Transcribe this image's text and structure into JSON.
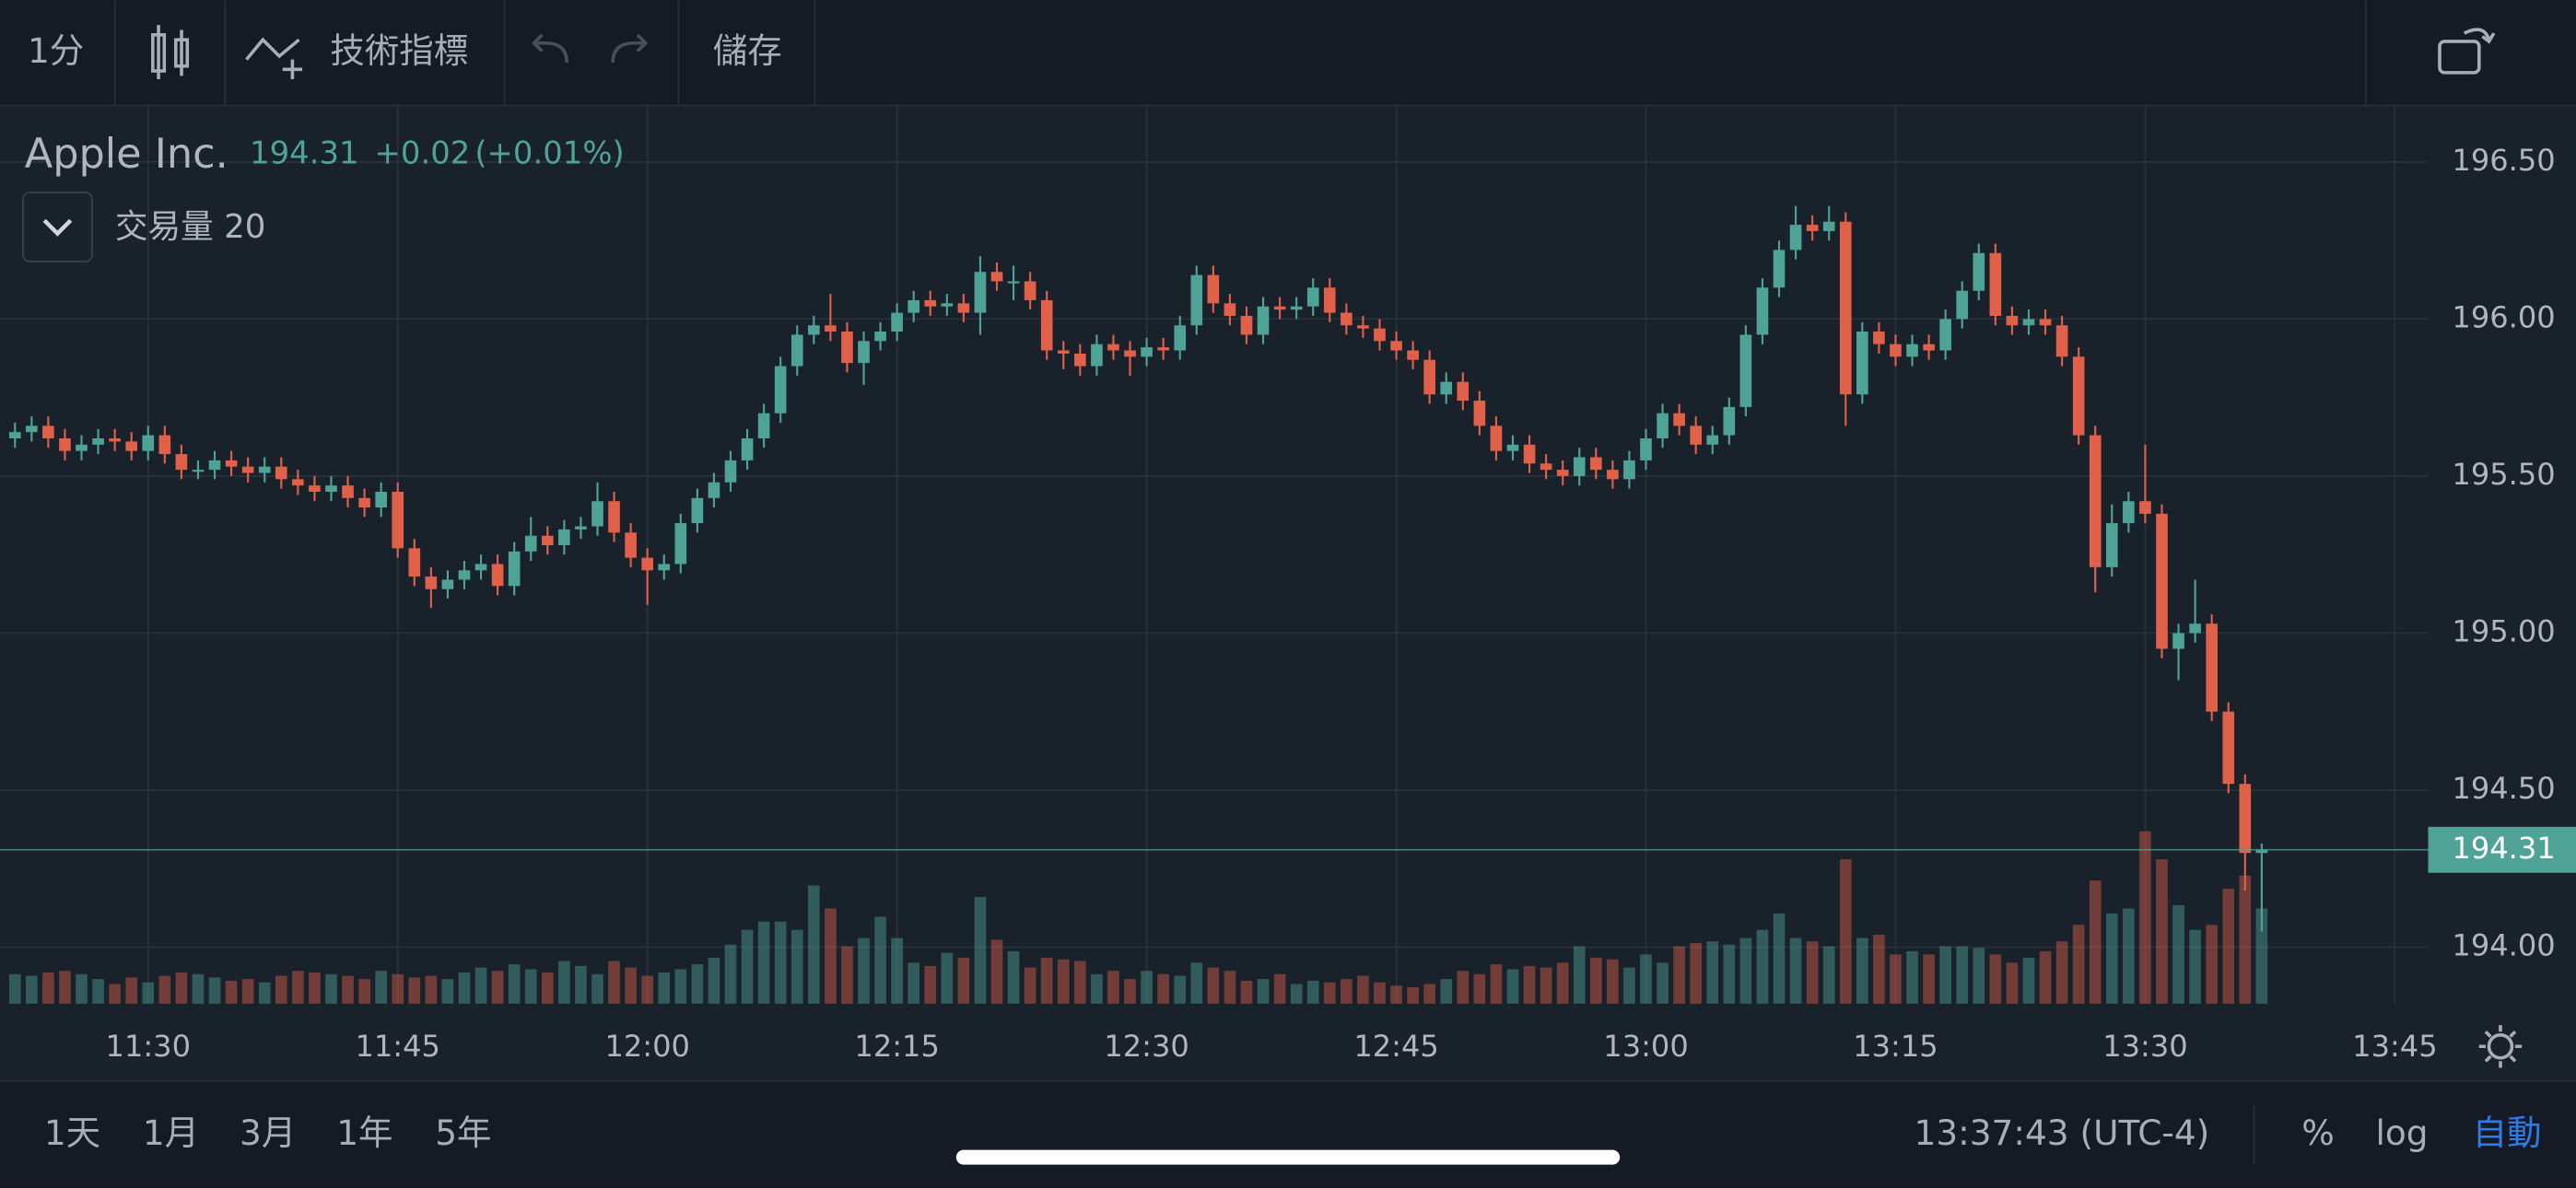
{
  "toolbar": {
    "interval": "1分",
    "indicators": "技術指標",
    "save": "儲存"
  },
  "chart_data": {
    "type": "candlestick",
    "title": "Apple Inc.",
    "last_price": 194.31,
    "change": "+0.02",
    "change_pct": "(+0.01%)",
    "volume_label": "交易量 20",
    "up_color": "#4fa396",
    "down_color": "#e0604a",
    "grid": true,
    "xlim": [
      681.1,
      827
    ],
    "ylim": [
      193.82,
      196.68
    ],
    "volume_lim": [
      0,
      120
    ],
    "xticks": [
      {
        "value": 690,
        "label": "11:30"
      },
      {
        "value": 705,
        "label": "11:45"
      },
      {
        "value": 720,
        "label": "12:00"
      },
      {
        "value": 735,
        "label": "12:15"
      },
      {
        "value": 750,
        "label": "12:30"
      },
      {
        "value": 765,
        "label": "12:45"
      },
      {
        "value": 780,
        "label": "13:00"
      },
      {
        "value": 795,
        "label": "13:15"
      },
      {
        "value": 810,
        "label": "13:30"
      },
      {
        "value": 825,
        "label": "13:45"
      }
    ],
    "yticks": [
      {
        "value": 194,
        "label": "194.00"
      },
      {
        "value": 194.5,
        "label": "194.50"
      },
      {
        "value": 195,
        "label": "195.00"
      },
      {
        "value": 195.5,
        "label": "195.50"
      },
      {
        "value": 196,
        "label": "196.00"
      },
      {
        "value": 196.5,
        "label": "196.50"
      }
    ],
    "x": [
      682,
      683,
      684,
      685,
      686,
      687,
      688,
      689,
      690,
      691,
      692,
      693,
      694,
      695,
      696,
      697,
      698,
      699,
      700,
      701,
      702,
      703,
      704,
      705,
      706,
      707,
      708,
      709,
      710,
      711,
      712,
      713,
      714,
      715,
      716,
      717,
      718,
      719,
      720,
      721,
      722,
      723,
      724,
      725,
      726,
      727,
      728,
      729,
      730,
      731,
      732,
      733,
      734,
      735,
      736,
      737,
      738,
      739,
      740,
      741,
      742,
      743,
      744,
      745,
      746,
      747,
      748,
      749,
      750,
      751,
      752,
      753,
      754,
      755,
      756,
      757,
      758,
      759,
      760,
      761,
      762,
      763,
      764,
      765,
      766,
      767,
      768,
      769,
      770,
      771,
      772,
      773,
      774,
      775,
      776,
      777,
      778,
      779,
      780,
      781,
      782,
      783,
      784,
      785,
      786,
      787,
      788,
      789,
      790,
      791,
      792,
      793,
      794,
      795,
      796,
      797,
      798,
      799,
      800,
      801,
      802,
      803,
      804,
      805,
      806,
      807,
      808,
      809,
      810,
      811,
      812,
      813,
      814,
      815,
      816,
      817
    ],
    "open": [
      195.62,
      195.64,
      195.66,
      195.62,
      195.58,
      195.6,
      195.62,
      195.61,
      195.58,
      195.63,
      195.57,
      195.52,
      195.52,
      195.55,
      195.53,
      195.51,
      195.53,
      195.49,
      195.47,
      195.45,
      195.47,
      195.43,
      195.4,
      195.45,
      195.27,
      195.18,
      195.14,
      195.17,
      195.2,
      195.22,
      195.15,
      195.26,
      195.31,
      195.28,
      195.33,
      195.34,
      195.42,
      195.32,
      195.24,
      195.2,
      195.22,
      195.35,
      195.43,
      195.48,
      195.55,
      195.62,
      195.7,
      195.85,
      195.95,
      195.98,
      195.96,
      195.86,
      195.93,
      195.96,
      196.02,
      196.06,
      196.04,
      196.05,
      196.02,
      196.15,
      196.12,
      196.12,
      196.06,
      195.9,
      195.89,
      195.85,
      195.92,
      195.9,
      195.88,
      195.91,
      195.9,
      195.98,
      196.14,
      196.05,
      196.01,
      195.95,
      196.04,
      196.03,
      196.04,
      196.1,
      196.02,
      195.98,
      195.97,
      195.93,
      195.9,
      195.87,
      195.76,
      195.8,
      195.74,
      195.66,
      195.58,
      195.6,
      195.54,
      195.52,
      195.5,
      195.56,
      195.52,
      195.49,
      195.55,
      195.62,
      195.7,
      195.66,
      195.6,
      195.63,
      195.72,
      195.95,
      196.1,
      196.22,
      196.3,
      196.28,
      196.31,
      195.76,
      195.96,
      195.92,
      195.88,
      195.92,
      195.9,
      196.0,
      196.09,
      196.21,
      196.01,
      195.98,
      196.0,
      195.98,
      195.88,
      195.63,
      195.21,
      195.35,
      195.42,
      195.38,
      194.95,
      195.0,
      195.03,
      194.75,
      194.52,
      194.3
    ],
    "high": [
      195.67,
      195.69,
      195.69,
      195.65,
      195.63,
      195.65,
      195.65,
      195.64,
      195.66,
      195.66,
      195.6,
      195.55,
      195.58,
      195.58,
      195.56,
      195.56,
      195.56,
      195.52,
      195.5,
      195.5,
      195.5,
      195.46,
      195.48,
      195.48,
      195.3,
      195.21,
      195.2,
      195.23,
      195.25,
      195.25,
      195.29,
      195.37,
      195.34,
      195.36,
      195.37,
      195.48,
      195.45,
      195.35,
      195.27,
      195.25,
      195.38,
      195.46,
      195.51,
      195.58,
      195.65,
      195.73,
      195.88,
      195.98,
      196.01,
      196.08,
      195.99,
      195.96,
      195.99,
      196.05,
      196.09,
      196.09,
      196.08,
      196.08,
      196.2,
      196.18,
      196.17,
      196.15,
      196.09,
      195.93,
      195.92,
      195.95,
      195.95,
      195.93,
      195.94,
      195.94,
      196.01,
      196.17,
      196.17,
      196.08,
      196.04,
      196.07,
      196.07,
      196.07,
      196.13,
      196.13,
      196.05,
      196.01,
      196.0,
      195.96,
      195.93,
      195.9,
      195.83,
      195.83,
      195.77,
      195.69,
      195.63,
      195.63,
      195.57,
      195.55,
      195.59,
      195.59,
      195.55,
      195.58,
      195.65,
      195.73,
      195.73,
      195.69,
      195.66,
      195.75,
      195.98,
      196.13,
      196.25,
      196.36,
      196.33,
      196.36,
      196.34,
      195.99,
      195.99,
      195.95,
      195.95,
      195.95,
      196.03,
      196.12,
      196.24,
      196.24,
      196.04,
      196.03,
      196.03,
      196.01,
      195.91,
      195.66,
      195.41,
      195.45,
      195.6,
      195.41,
      195.03,
      195.17,
      195.06,
      194.78,
      194.55,
      194.33
    ],
    "low": [
      195.59,
      195.61,
      195.59,
      195.55,
      195.55,
      195.57,
      195.58,
      195.55,
      195.55,
      195.54,
      195.49,
      195.49,
      195.49,
      195.5,
      195.48,
      195.48,
      195.46,
      195.44,
      195.42,
      195.42,
      195.4,
      195.37,
      195.37,
      195.24,
      195.15,
      195.08,
      195.11,
      195.14,
      195.17,
      195.12,
      195.12,
      195.23,
      195.25,
      195.25,
      195.3,
      195.31,
      195.29,
      195.21,
      195.09,
      195.17,
      195.19,
      195.32,
      195.4,
      195.45,
      195.52,
      195.59,
      195.67,
      195.82,
      195.92,
      195.93,
      195.83,
      195.79,
      195.9,
      195.93,
      195.99,
      196.01,
      196.01,
      195.99,
      195.95,
      196.09,
      196.06,
      196.03,
      195.87,
      195.84,
      195.82,
      195.82,
      195.87,
      195.82,
      195.85,
      195.87,
      195.87,
      195.95,
      196.02,
      195.98,
      195.92,
      195.92,
      196.0,
      196.0,
      196.01,
      195.99,
      195.95,
      195.94,
      195.9,
      195.87,
      195.84,
      195.73,
      195.73,
      195.71,
      195.63,
      195.55,
      195.55,
      195.51,
      195.49,
      195.47,
      195.47,
      195.49,
      195.46,
      195.46,
      195.52,
      195.59,
      195.63,
      195.57,
      195.57,
      195.6,
      195.69,
      195.92,
      196.07,
      196.19,
      196.25,
      196.25,
      195.66,
      195.73,
      195.89,
      195.85,
      195.85,
      195.87,
      195.87,
      195.97,
      196.06,
      195.98,
      195.95,
      195.95,
      195.95,
      195.85,
      195.6,
      195.13,
      195.18,
      195.32,
      195.35,
      194.92,
      194.85,
      194.97,
      194.72,
      194.49,
      194.18,
      194.05
    ],
    "close": [
      195.64,
      195.66,
      195.62,
      195.58,
      195.6,
      195.62,
      195.61,
      195.58,
      195.63,
      195.57,
      195.52,
      195.52,
      195.55,
      195.53,
      195.51,
      195.53,
      195.49,
      195.47,
      195.45,
      195.47,
      195.43,
      195.4,
      195.45,
      195.27,
      195.18,
      195.14,
      195.17,
      195.2,
      195.22,
      195.15,
      195.26,
      195.31,
      195.28,
      195.33,
      195.34,
      195.42,
      195.32,
      195.24,
      195.2,
      195.22,
      195.35,
      195.43,
      195.48,
      195.55,
      195.62,
      195.7,
      195.85,
      195.95,
      195.98,
      195.96,
      195.86,
      195.93,
      195.96,
      196.02,
      196.06,
      196.04,
      196.05,
      196.02,
      196.15,
      196.12,
      196.12,
      196.06,
      195.9,
      195.89,
      195.85,
      195.92,
      195.9,
      195.88,
      195.91,
      195.9,
      195.98,
      196.14,
      196.05,
      196.01,
      195.95,
      196.04,
      196.03,
      196.04,
      196.1,
      196.02,
      195.98,
      195.97,
      195.93,
      195.9,
      195.87,
      195.76,
      195.8,
      195.74,
      195.66,
      195.58,
      195.6,
      195.54,
      195.52,
      195.5,
      195.56,
      195.52,
      195.49,
      195.55,
      195.62,
      195.7,
      195.66,
      195.6,
      195.63,
      195.72,
      195.95,
      196.1,
      196.22,
      196.3,
      196.28,
      196.31,
      195.76,
      195.96,
      195.92,
      195.88,
      195.92,
      195.9,
      196.0,
      196.09,
      196.21,
      196.01,
      195.98,
      196.0,
      195.98,
      195.88,
      195.63,
      195.21,
      195.35,
      195.42,
      195.38,
      194.95,
      195.0,
      195.03,
      194.75,
      194.52,
      194.3,
      194.31
    ],
    "volume": [
      18,
      17,
      19,
      20,
      18,
      15,
      12,
      16,
      13,
      17,
      19,
      18,
      16,
      14,
      15,
      13,
      17,
      20,
      19,
      18,
      17,
      15,
      20,
      18,
      16,
      17,
      15,
      19,
      22,
      20,
      24,
      21,
      19,
      26,
      23,
      18,
      26,
      22,
      17,
      19,
      21,
      24,
      28,
      36,
      45,
      50,
      50,
      45,
      72,
      58,
      35,
      40,
      53,
      40,
      25,
      23,
      31,
      28,
      65,
      39,
      32,
      22,
      28,
      27,
      26,
      18,
      20,
      15,
      20,
      18,
      17,
      25,
      22,
      20,
      14,
      15,
      18,
      12,
      14,
      13,
      15,
      17,
      13,
      11,
      10,
      12,
      15,
      20,
      18,
      24,
      21,
      23,
      22,
      25,
      35,
      28,
      27,
      22,
      30,
      25,
      35,
      37,
      38,
      36,
      40,
      45,
      55,
      40,
      38,
      35,
      88,
      40,
      42,
      30,
      32,
      30,
      35,
      35,
      34,
      30,
      25,
      28,
      32,
      38,
      48,
      75,
      55,
      58,
      105,
      88,
      60,
      45,
      48,
      70,
      78,
      58
    ]
  },
  "footer": {
    "ranges": [
      "1天",
      "1月",
      "3月",
      "1年",
      "5年"
    ],
    "clock": "13:37:43 (UTC-4)",
    "percent": "%",
    "log": "log",
    "auto": "自動"
  }
}
